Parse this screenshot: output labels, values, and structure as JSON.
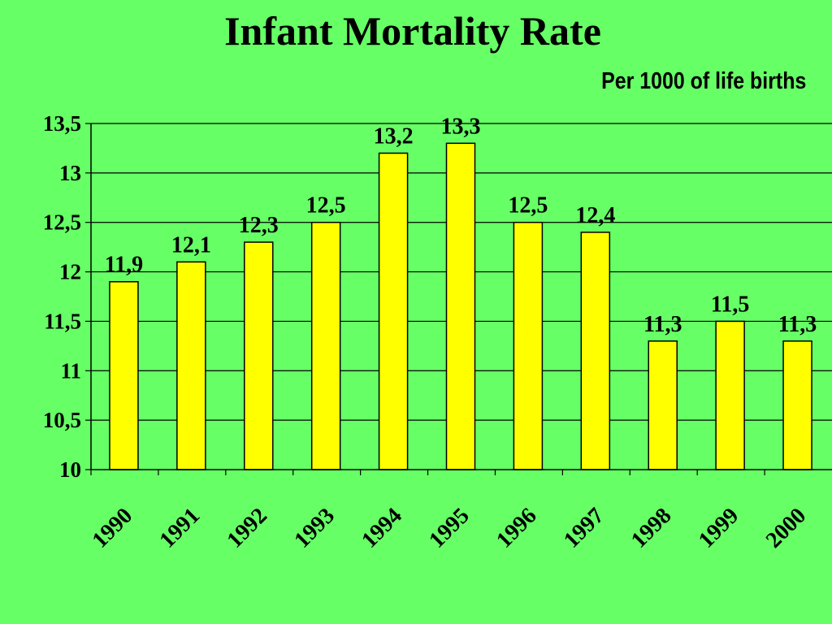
{
  "background_color": "#66ff66",
  "bar_color": "#ffff00",
  "chart_data": {
    "type": "bar",
    "title": "Infant Mortality Rate",
    "subtitle": "Per 1000 of life births",
    "categories": [
      "1990",
      "1991",
      "1992",
      "1993",
      "1994",
      "1995",
      "1996",
      "1997",
      "1998",
      "1999",
      "2000"
    ],
    "values": [
      11.9,
      12.1,
      12.3,
      12.5,
      13.2,
      13.3,
      12.5,
      12.4,
      11.3,
      11.5,
      11.3
    ],
    "data_labels": [
      "11,9",
      "12,1",
      "12,3",
      "12,5",
      "13,2",
      "13,3",
      "12,5",
      "12,4",
      "11,3",
      "11,5",
      "11,3"
    ],
    "y_ticks": [
      10,
      10.5,
      11,
      11.5,
      12,
      12.5,
      13,
      13.5
    ],
    "y_tick_labels": [
      "10",
      "10,5",
      "11",
      "11,5",
      "12",
      "12,5",
      "13",
      "13,5"
    ],
    "ylim": [
      10,
      13.5
    ],
    "grid": true,
    "legend": false
  }
}
